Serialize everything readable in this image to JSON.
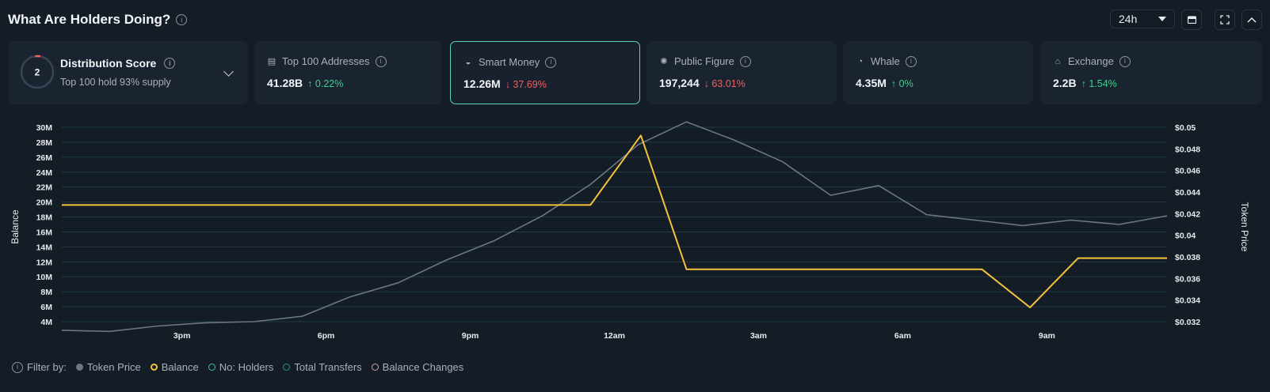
{
  "header": {
    "title": "What Are Holders Doing?",
    "range_label": "24h"
  },
  "distribution": {
    "score": "2",
    "title": "Distribution Score",
    "subtitle": "Top 100 hold 93% supply"
  },
  "cards": [
    {
      "label": "Top 100 Addresses",
      "value": "41.28B",
      "change": "0.22%",
      "direction": "up",
      "icon": "wallet-icon"
    },
    {
      "label": "Smart Money",
      "value": "12.26M",
      "change": "37.69%",
      "direction": "down",
      "icon": "smart-money-icon",
      "selected": true
    },
    {
      "label": "Public Figure",
      "value": "197,244",
      "change": "63.01%",
      "direction": "down",
      "icon": "public-figure-icon"
    },
    {
      "label": "Whale",
      "value": "4.35M",
      "change": "0%",
      "direction": "up",
      "icon": "whale-icon"
    },
    {
      "label": "Exchange",
      "value": "2.2B",
      "change": "1.54%",
      "direction": "up",
      "icon": "bank-icon"
    }
  ],
  "chart_data": {
    "type": "line",
    "x_ticks": [
      "3pm",
      "6pm",
      "9pm",
      "12am",
      "3am",
      "6am",
      "9am"
    ],
    "y_left": {
      "label": "Balance",
      "ticks": [
        "4M",
        "6M",
        "8M",
        "10M",
        "12M",
        "14M",
        "16M",
        "18M",
        "20M",
        "22M",
        "24M",
        "26M",
        "28M",
        "30M"
      ],
      "range": [
        4,
        30
      ]
    },
    "y_right": {
      "label": "Token Price",
      "ticks": [
        "$0.032",
        "$0.034",
        "$0.036",
        "$0.038",
        "$0.04",
        "$0.042",
        "$0.044",
        "$0.046",
        "$0.048",
        "$0.05"
      ],
      "range": [
        0.032,
        0.05
      ]
    },
    "grid": true,
    "series": [
      {
        "name": "Token Price",
        "axis": "right",
        "color": "#6b7785",
        "x": [
          0,
          1,
          2,
          3,
          4,
          5,
          6,
          7,
          8,
          9,
          10,
          11,
          12,
          13,
          14,
          15,
          16,
          17,
          18,
          19,
          20,
          21,
          22,
          23
        ],
        "values": [
          0.0312,
          0.0311,
          0.0316,
          0.0319,
          0.032,
          0.0325,
          0.0343,
          0.0356,
          0.0377,
          0.0395,
          0.0418,
          0.0447,
          0.0484,
          0.0505,
          0.0488,
          0.0468,
          0.0437,
          0.0446,
          0.0419,
          0.0414,
          0.0409,
          0.0414,
          0.041,
          0.0418
        ]
      },
      {
        "name": "Balance",
        "axis": "left",
        "color": "#f5c33b",
        "x": [
          0,
          11,
          12.05,
          13,
          19.15,
          20.15,
          21.15,
          23
        ],
        "values": [
          19.6,
          19.6,
          28.9,
          11.0,
          11.0,
          5.9,
          12.5,
          12.5
        ]
      }
    ]
  },
  "legend": {
    "prefix": "Filter by:",
    "items": [
      {
        "label": "Token Price",
        "color": "#6b7785",
        "filled": true
      },
      {
        "label": "Balance",
        "color": "#f5c33b",
        "filled": false
      },
      {
        "label": "No: Holders",
        "color": "#3ec5a6",
        "filled": false
      },
      {
        "label": "Total Transfers",
        "color": "#1f9a86",
        "filled": false
      },
      {
        "label": "Balance Changes",
        "color": "#c9a6a6",
        "filled": false
      }
    ]
  }
}
